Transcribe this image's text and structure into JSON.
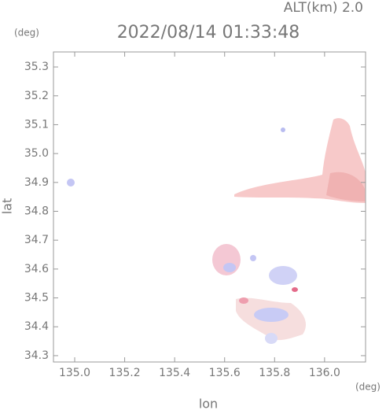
{
  "chart_data": {
    "type": "map",
    "title": "2022/08/14 01:33:48",
    "subtitle": "ALT(km) 2.0",
    "x_label": "lon",
    "y_label": "lat",
    "x_unit": "(deg)",
    "y_unit": "(deg)",
    "xlim": [
      134.915,
      136.164
    ],
    "ylim": [
      34.278,
      35.352
    ],
    "xticks": [
      {
        "value": 135,
        "label": "135.0"
      },
      135.2,
      135.4,
      135.6,
      135.8,
      {
        "value": 136,
        "label": "136.0"
      }
    ],
    "yticks": [
      34.3,
      34.4,
      34.5,
      34.6,
      34.7,
      34.8,
      34.9,
      {
        "value": 35,
        "label": "35.0"
      },
      35.1,
      35.2,
      35.3
    ]
  }
}
